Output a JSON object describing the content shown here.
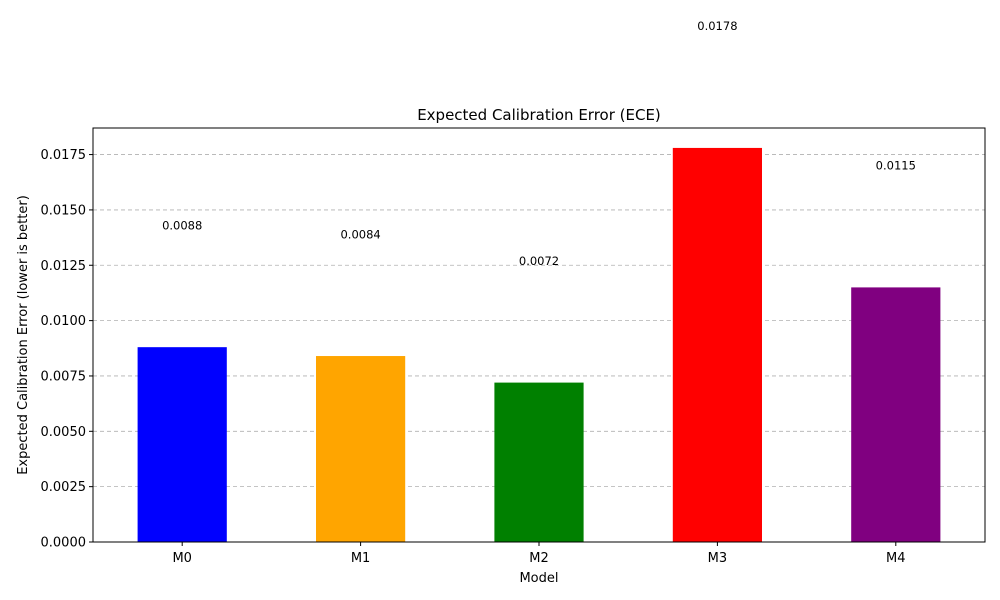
{
  "chart_data": {
    "type": "bar",
    "title": "Expected Calibration Error (ECE)",
    "xlabel": "Model",
    "ylabel": "Expected Calibration Error (lower is better)",
    "categories": [
      "M0",
      "M1",
      "M2",
      "M3",
      "M4"
    ],
    "values": [
      0.0088,
      0.0084,
      0.0072,
      0.0178,
      0.0115
    ],
    "value_labels": [
      "0.0088",
      "0.0084",
      "0.0072",
      "0.0178",
      "0.0115"
    ],
    "colors": [
      "#0000ff",
      "#ffa500",
      "#008000",
      "#ff0000",
      "#800080"
    ],
    "ylim": [
      0,
      0.0187
    ],
    "yticks": [
      "0.0000",
      "0.0025",
      "0.0050",
      "0.0075",
      "0.0100",
      "0.0125",
      "0.0150",
      "0.0175"
    ],
    "grid": "y-dashed",
    "legend": "none"
  }
}
